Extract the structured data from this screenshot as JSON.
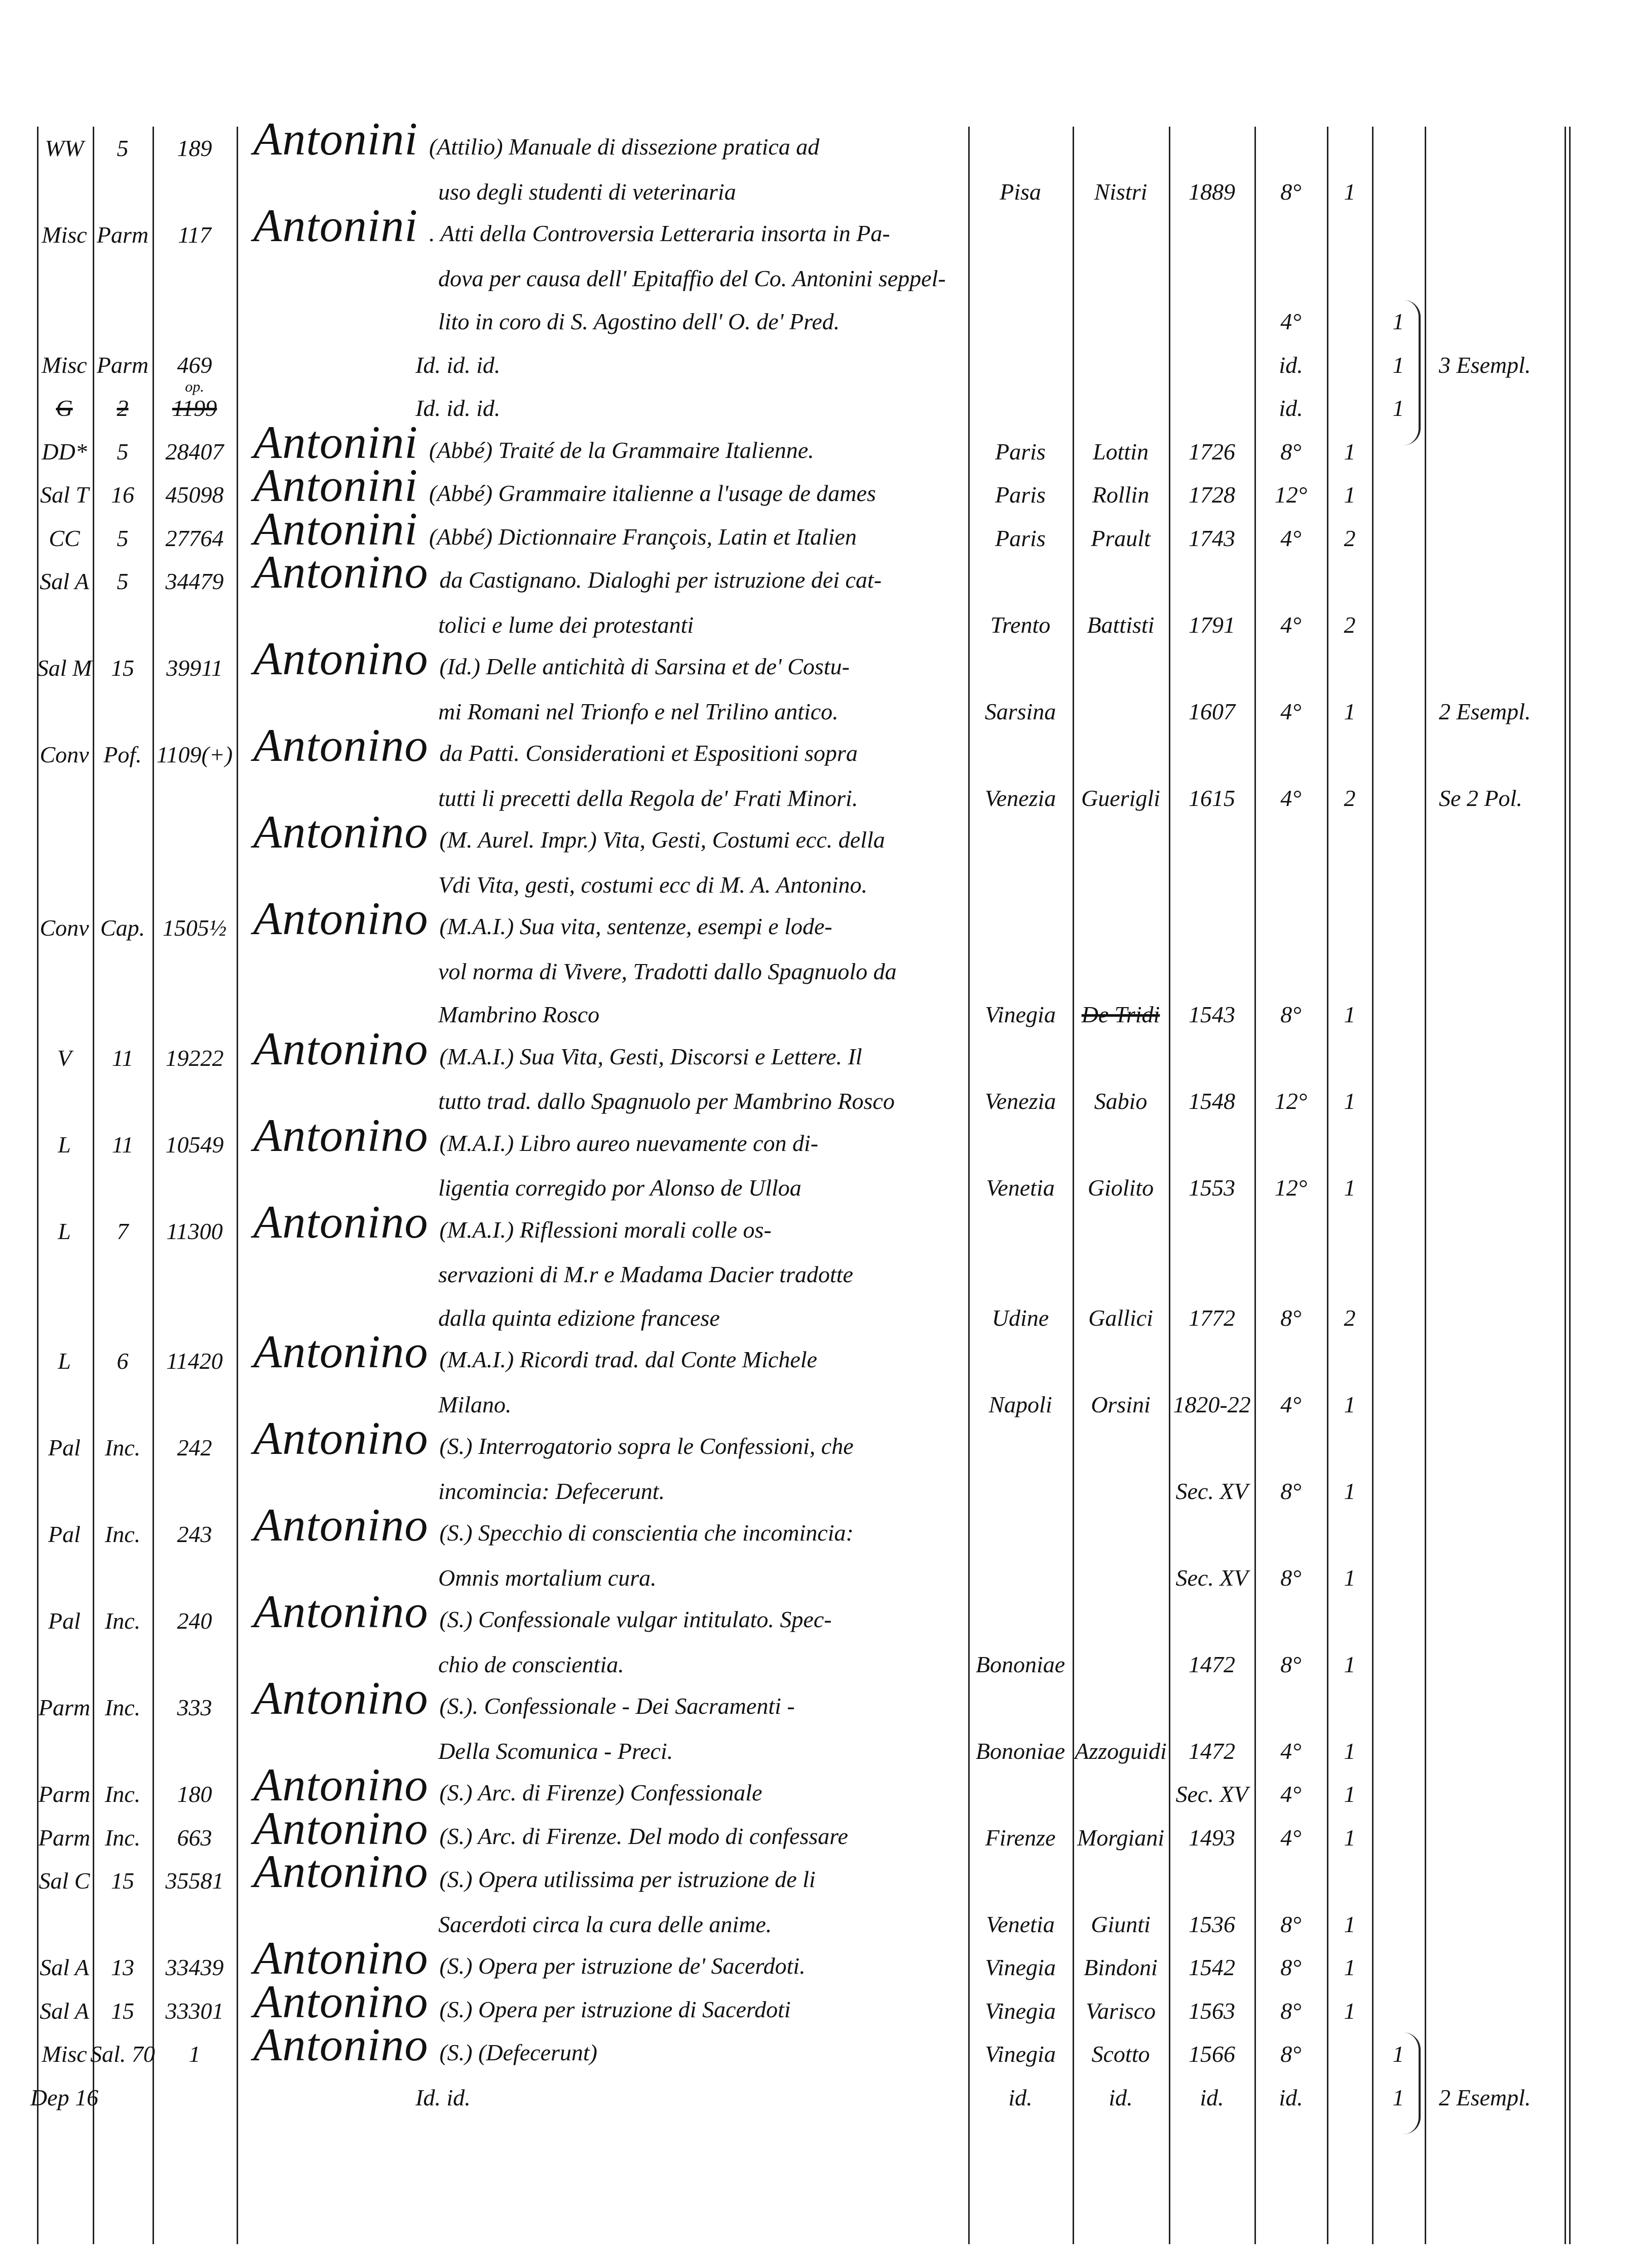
{
  "entries": [
    {
      "shelf": "WW",
      "section": "5",
      "number": "189",
      "heading": "Antonini",
      "lines": [
        "(Attilio) Manuale di dissezione pratica ad",
        "uso degli studenti di veterinaria"
      ],
      "place": "Pisa",
      "printer": "Nistri",
      "year": "1889",
      "format": "8°",
      "copies": "1"
    },
    {
      "shelf": "Misc",
      "section": "Parm",
      "number": "117",
      "heading": "Antonini",
      "lines": [
        ". Atti della Controversia Letteraria insorta in Pa-",
        "dova per causa dell' Epitaffio del Co. Antonini seppel-",
        "lito in coro di S. Agostino dell' O. de' Pred."
      ],
      "format": "4°",
      "extra": "1"
    },
    {
      "shelf": "Misc",
      "section": "Parm",
      "number": "469",
      "lines": [
        "Id.            id.            id."
      ],
      "format": "id.",
      "extra": "1",
      "note": "3 Esempl."
    },
    {
      "shelf": "G",
      "section": "2",
      "number": "1199",
      "number_sup": "op.",
      "struck": true,
      "lines": [
        "Id.            id.            id."
      ],
      "format": "id.",
      "extra": "1"
    },
    {
      "shelf": "DD*",
      "section": "5",
      "number": "28407",
      "heading": "Antonini",
      "lines": [
        "(Abbé) Traité de la Grammaire Italienne."
      ],
      "place": "Paris",
      "printer": "Lottin",
      "year": "1726",
      "format": "8°",
      "copies": "1"
    },
    {
      "shelf": "Sal T",
      "section": "16",
      "number": "45098",
      "heading": "Antonini",
      "lines": [
        "(Abbé) Grammaire italienne a l'usage de dames"
      ],
      "place": "Paris",
      "printer": "Rollin",
      "year": "1728",
      "format": "12°",
      "copies": "1"
    },
    {
      "shelf": "CC",
      "section": "5",
      "number": "27764",
      "heading": "Antonini",
      "lines": [
        "(Abbé) Dictionnaire François, Latin et Italien"
      ],
      "place": "Paris",
      "printer": "Prault",
      "year": "1743",
      "format": "4°",
      "copies": "2"
    },
    {
      "shelf": "Sal A",
      "section": "5",
      "number": "34479",
      "heading": "Antonino",
      "lines": [
        "da Castignano. Dialoghi per istruzione dei cat-",
        "tolici e lume dei protestanti"
      ],
      "place": "Trento",
      "printer": "Battisti",
      "year": "1791",
      "format": "4°",
      "copies": "2"
    },
    {
      "shelf": "Sal M",
      "section": "15",
      "number": "39911",
      "heading": "Antonino",
      "lines": [
        "(Id.) Delle antichità di Sarsina et de' Costu-",
        "mi Romani nel Trionfo e nel Trilino antico."
      ],
      "place": "Sarsina",
      "year": "1607",
      "format": "4°",
      "copies": "1",
      "note": "2 Esempl."
    },
    {
      "shelf": "Conv",
      "section": "Pof.",
      "number": "1109(+)",
      "heading": "Antonino",
      "lines": [
        "da Patti. Considerationi et Espositioni sopra",
        "tutti li precetti della Regola de' Frati Minori."
      ],
      "place": "Venezia",
      "printer": "Guerigli",
      "year": "1615",
      "format": "4°",
      "copies": "2",
      "note": "Se 2 Pol."
    },
    {
      "heading": "Antonino",
      "lines": [
        "(M. Aurel. Impr.) Vita, Gesti, Costumi ecc. della",
        "Vdi Vita, gesti, costumi ecc di M. A. Antonino."
      ]
    },
    {
      "shelf": "Conv",
      "section": "Cap.",
      "number": "1505½",
      "heading": "Antonino",
      "lines": [
        "(M.A.I.) Sua vita, sentenze, esempi e lode-",
        "vol norma di Vivere, Tradotti dallo Spagnuolo da",
        "Mambrino Rosco"
      ],
      "place": "Vinegia",
      "printer": "De Tridi",
      "printer_struck": true,
      "year": "1543",
      "format": "8°",
      "copies": "1"
    },
    {
      "shelf": "V",
      "section": "11",
      "number": "19222",
      "heading": "Antonino",
      "lines": [
        "(M.A.I.) Sua Vita, Gesti, Discorsi e Lettere. Il",
        "tutto trad. dallo Spagnuolo per Mambrino Rosco"
      ],
      "place": "Venezia",
      "printer": "Sabio",
      "year": "1548",
      "format": "12°",
      "copies": "1"
    },
    {
      "shelf": "L",
      "section": "11",
      "number": "10549",
      "heading": "Antonino",
      "lines": [
        "(M.A.I.) Libro aureo nuevamente con di-",
        "ligentia corregido por Alonso de Ulloa"
      ],
      "place": "Venetia",
      "printer": "Giolito",
      "year": "1553",
      "format": "12°",
      "copies": "1"
    },
    {
      "shelf": "L",
      "section": "7",
      "number": "11300",
      "heading": "Antonino",
      "lines": [
        "(M.A.I.) Riflessioni morali colle os-",
        "servazioni di M.r e Madama Dacier tradotte",
        "dalla quinta edizione francese"
      ],
      "place": "Udine",
      "printer": "Gallici",
      "year": "1772",
      "format": "8°",
      "copies": "2"
    },
    {
      "shelf": "L",
      "section": "6",
      "number": "11420",
      "heading": "Antonino",
      "lines": [
        "(M.A.I.) Ricordi trad. dal Conte Michele",
        "Milano."
      ],
      "place": "Napoli",
      "printer": "Orsini",
      "year": "1820-22",
      "format": "4°",
      "copies": "1"
    },
    {
      "shelf": "Pal",
      "section": "Inc.",
      "number": "242",
      "heading": "Antonino",
      "lines": [
        "(S.) Interrogatorio sopra le Confessioni, che",
        "incomincia: Defecerunt."
      ],
      "year": "Sec. XV",
      "format": "8°",
      "copies": "1"
    },
    {
      "shelf": "Pal",
      "section": "Inc.",
      "number": "243",
      "heading": "Antonino",
      "lines": [
        "(S.) Specchio di conscientia che incomincia:",
        "Omnis mortalium cura."
      ],
      "year": "Sec. XV",
      "format": "8°",
      "copies": "1"
    },
    {
      "shelf": "Pal",
      "section": "Inc.",
      "number": "240",
      "heading": "Antonino",
      "lines": [
        "(S.) Confessionale vulgar intitulato. Spec-",
        "chio de conscientia."
      ],
      "place": "Bononiae",
      "year": "1472",
      "format": "8°",
      "copies": "1"
    },
    {
      "shelf": "Parm",
      "section": "Inc.",
      "number": "333",
      "heading": "Antonino",
      "lines": [
        "(S.). Confessionale - Dei Sacramenti -",
        "Della Scomunica - Preci."
      ],
      "place": "Bononiae",
      "printer": "Azzoguidi",
      "year": "1472",
      "format": "4°",
      "copies": "1"
    },
    {
      "shelf": "Parm",
      "section": "Inc.",
      "number": "180",
      "heading": "Antonino",
      "lines": [
        "(S.) Arc. di Firenze) Confessionale"
      ],
      "year": "Sec. XV",
      "format": "4°",
      "copies": "1"
    },
    {
      "shelf": "Parm",
      "section": "Inc.",
      "number": "663",
      "heading": "Antonino",
      "lines": [
        "(S.) Arc. di Firenze. Del modo di confessare"
      ],
      "place": "Firenze",
      "printer": "Morgiani",
      "year": "1493",
      "format": "4°",
      "copies": "1"
    },
    {
      "shelf": "Sal C",
      "section": "15",
      "number": "35581",
      "heading": "Antonino",
      "lines": [
        "(S.) Opera utilissima per istruzione de li",
        "Sacerdoti circa la cura delle anime."
      ],
      "place": "Venetia",
      "printer": "Giunti",
      "year": "1536",
      "format": "8°",
      "copies": "1"
    },
    {
      "shelf": "Sal A",
      "section": "13",
      "number": "33439",
      "heading": "Antonino",
      "lines": [
        "(S.) Opera per istruzione de' Sacerdoti."
      ],
      "place": "Vinegia",
      "printer": "Bindoni",
      "year": "1542",
      "format": "8°",
      "copies": "1"
    },
    {
      "shelf": "Sal A",
      "section": "15",
      "number": "33301",
      "heading": "Antonino",
      "lines": [
        "(S.) Opera per istruzione di Sacerdoti"
      ],
      "place": "Vinegia",
      "printer": "Varisco",
      "year": "1563",
      "format": "8°",
      "copies": "1"
    },
    {
      "shelf": "Misc",
      "section": "Sal. 70",
      "number": "1",
      "heading": "Antonino",
      "lines": [
        "(S.)  (Defecerunt)"
      ],
      "place": "Vinegia",
      "printer": "Scotto",
      "year": "1566",
      "format": "8°",
      "extra": "1"
    },
    {
      "shelf": "Dep 16",
      "lines": [
        "Id.                 id."
      ],
      "place": "id.",
      "printer": "id.",
      "year": "id.",
      "format": "id.",
      "extra": "1",
      "note": "2 Esempl."
    }
  ]
}
